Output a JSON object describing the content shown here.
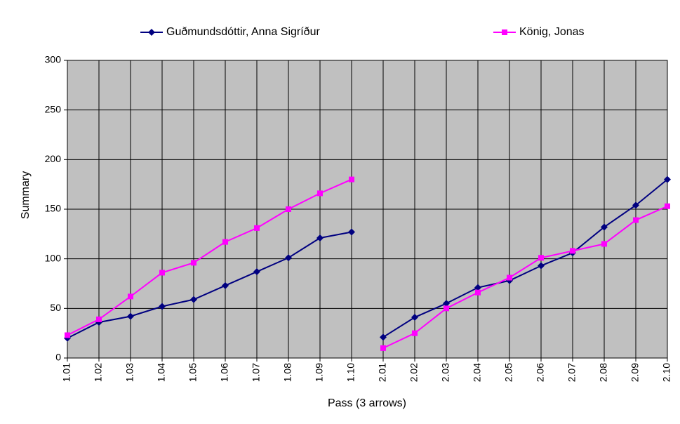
{
  "chart_data": {
    "type": "line",
    "x_label": "Pass (3 arrows)",
    "y_label": "Summary",
    "categories": [
      [
        "1.01",
        "1.02",
        "1.03",
        "1.04",
        "1.05",
        "1.06",
        "1.07",
        "1.08",
        "1.09",
        "1.10"
      ],
      [
        "2.01",
        "2.02",
        "2.03",
        "2.04",
        "2.05",
        "2.06",
        "2.07",
        "2.08",
        "2.09",
        "2.10"
      ]
    ],
    "series": [
      {
        "name": "Guðmundsdóttir, Anna Sigríður",
        "color": "#000080",
        "marker": "diamond",
        "values": [
          [
            20,
            36,
            42,
            52,
            59,
            73,
            87,
            101,
            121,
            127
          ],
          [
            21,
            41,
            55,
            71,
            78,
            93,
            106,
            132,
            154,
            180
          ]
        ]
      },
      {
        "name": "König, Jonas",
        "color": "#ff00ff",
        "marker": "square",
        "values": [
          [
            23,
            39,
            62,
            86,
            96,
            117,
            131,
            150,
            166,
            180
          ],
          [
            10,
            25,
            50,
            66,
            81,
            101,
            108,
            115,
            139,
            153
          ]
        ]
      }
    ],
    "ylim": [
      0,
      300
    ],
    "yticks": [
      0,
      50,
      100,
      150,
      200,
      250,
      300
    ],
    "grid": true,
    "plot_background": "#c0c0c0"
  }
}
